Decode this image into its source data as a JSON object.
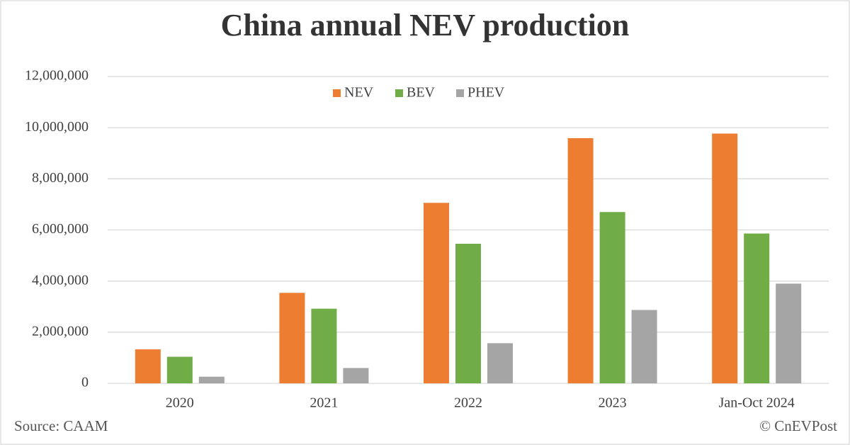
{
  "chart_data": {
    "type": "bar",
    "title": "China annual NEV production",
    "categories": [
      "2020",
      "2021",
      "2022",
      "2023",
      "Jan-Oct 2024"
    ],
    "series": [
      {
        "name": "NEV",
        "color": "#ed7d31",
        "values": [
          1330000,
          3540000,
          7060000,
          9590000,
          9770000
        ]
      },
      {
        "name": "BEV",
        "color": "#70ad47",
        "values": [
          1040000,
          2920000,
          5460000,
          6700000,
          5860000
        ]
      },
      {
        "name": "PHEV",
        "color": "#a5a5a5",
        "values": [
          260000,
          600000,
          1570000,
          2870000,
          3900000
        ]
      }
    ],
    "ylim": [
      0,
      12000000
    ],
    "yticks": [
      0,
      {
        "value": 2000000,
        "label": "2,000,000"
      },
      {
        "value": 4000000,
        "label": "4,000,000"
      },
      {
        "value": 6000000,
        "label": "6,000,000"
      },
      {
        "value": 8000000,
        "label": "8,000,000"
      },
      {
        "value": 10000000,
        "label": "10,000,000"
      },
      {
        "value": 12000000,
        "label": "12,000,000"
      }
    ],
    "grid": true,
    "legend": "top",
    "source": "Source: CAAM",
    "credit": "© CnEVPost"
  }
}
